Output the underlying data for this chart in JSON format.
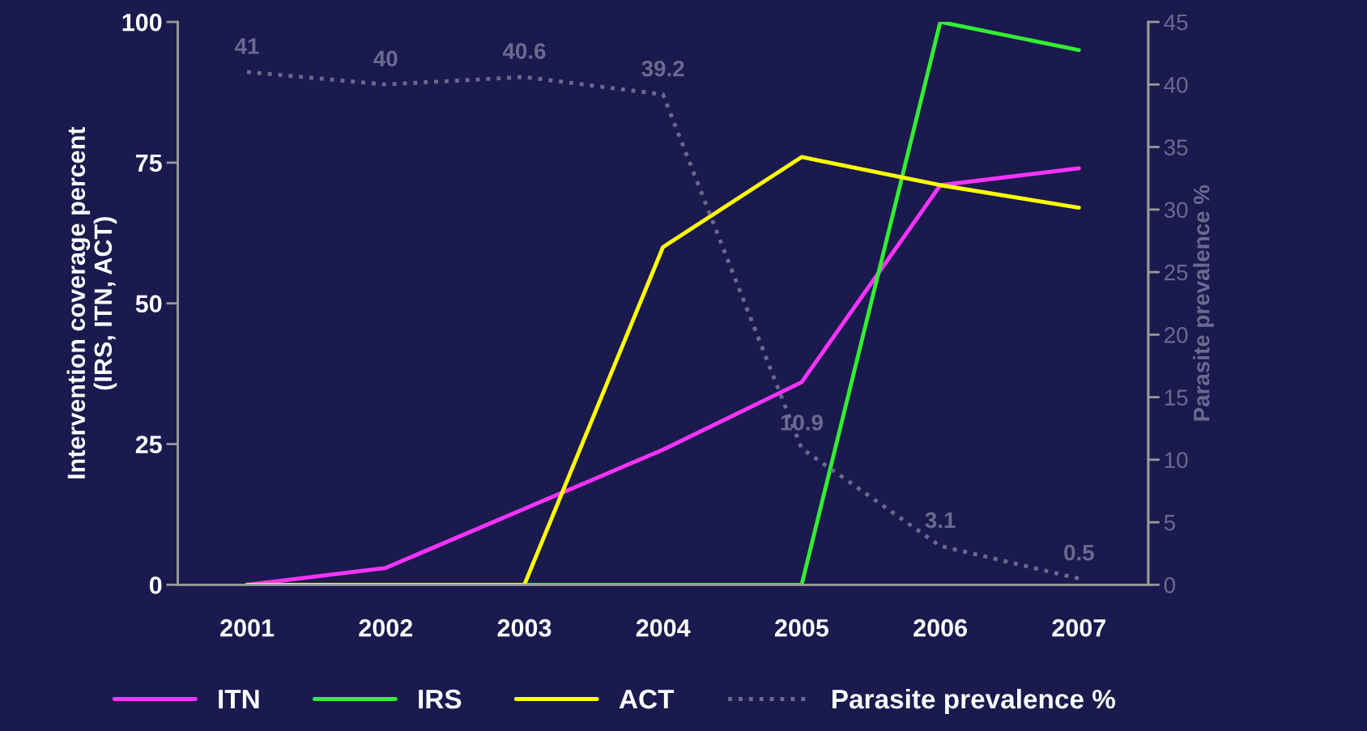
{
  "chart_data": {
    "type": "line",
    "categories": [
      "2001",
      "2002",
      "2003",
      "2004",
      "2005",
      "2006",
      "2007"
    ],
    "ylabel": "Intervention coverage percent\n(IRS, ITN, ACT)",
    "y2label": "Parasite prevalence %",
    "ylim": [
      0,
      100
    ],
    "yticks": [
      0,
      25,
      50,
      75,
      100
    ],
    "y2lim": [
      0,
      45
    ],
    "y2ticks": [
      0,
      5,
      10,
      15,
      20,
      25,
      30,
      35,
      40,
      45
    ],
    "grid": false,
    "legend": "bottom",
    "marker": "none",
    "series": [
      {
        "name": "ITN",
        "color": "#ff33ff",
        "values": [
          0,
          3,
          13.5,
          24,
          36,
          71,
          74
        ]
      },
      {
        "name": "IRS",
        "color": "#33ee33",
        "values": [
          0,
          0,
          0,
          0,
          0,
          100,
          95
        ]
      },
      {
        "name": "ACT",
        "color": "#ffff00",
        "values": [
          0,
          0,
          0,
          60,
          76,
          71,
          67
        ]
      },
      {
        "name": "Parasite prevalence %",
        "color": "#6a6a90",
        "axis": "y2",
        "line_style": "dotted",
        "data_labels": true,
        "values": [
          41,
          40,
          40.6,
          39.2,
          10.9,
          3.1,
          0.5
        ]
      }
    ]
  }
}
